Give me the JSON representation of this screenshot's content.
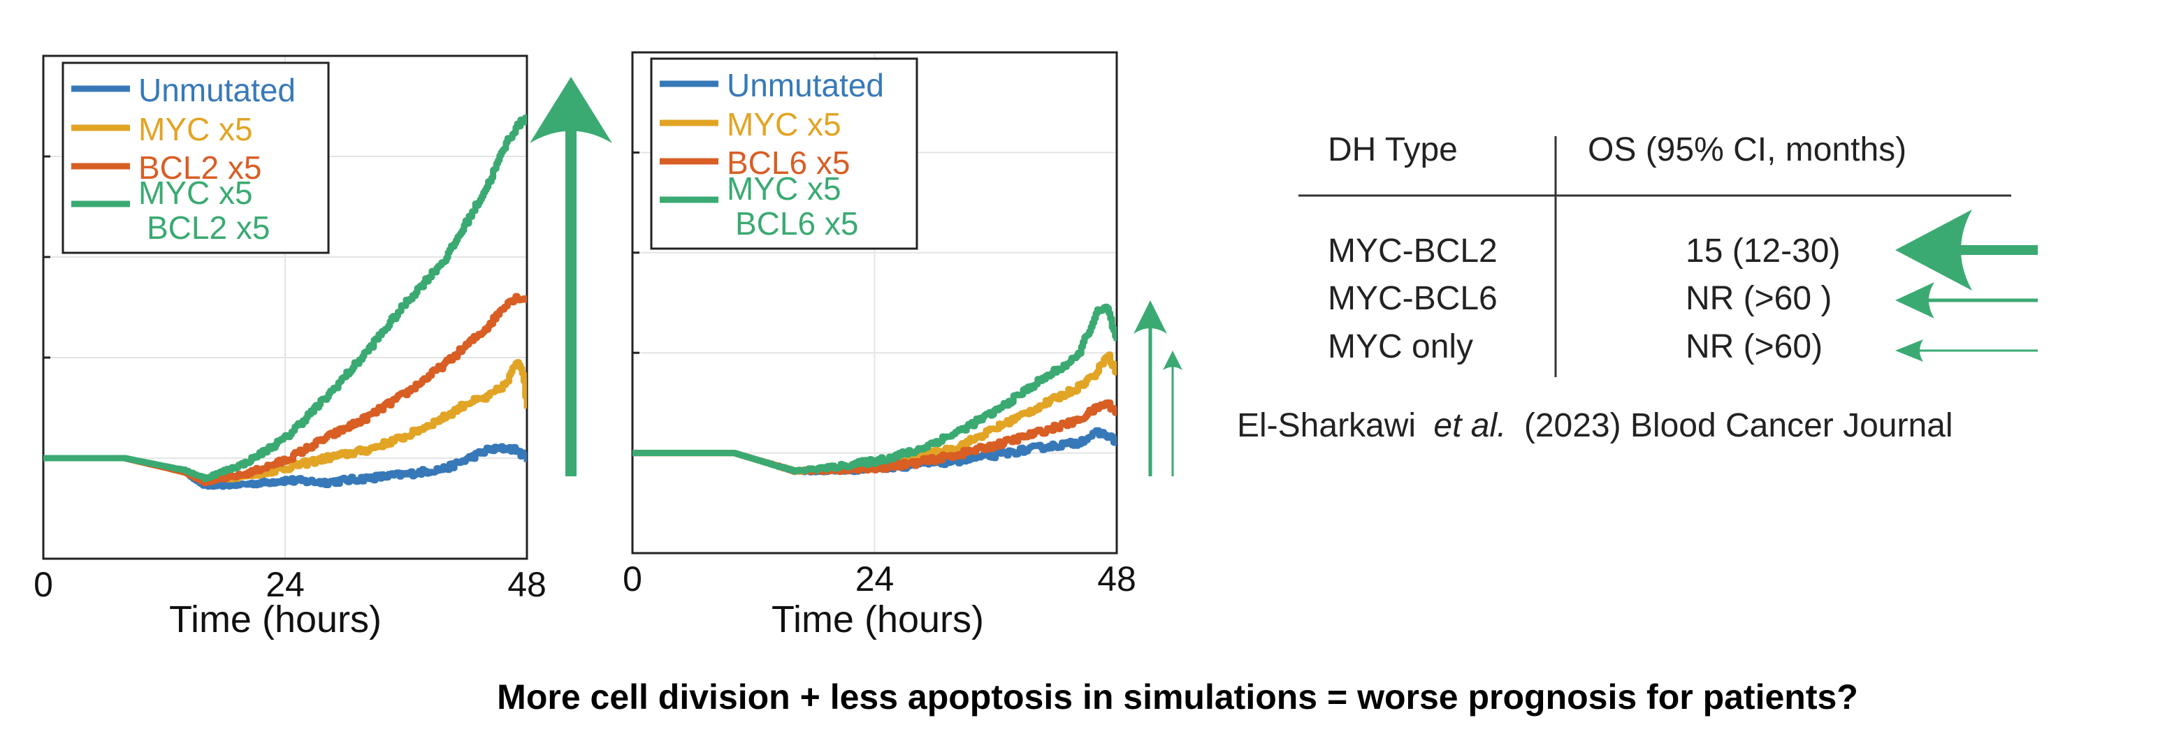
{
  "colors": {
    "unmutated": "#3779b8",
    "myc": "#e2a424",
    "bcl": "#d85e24",
    "combo": "#3aaa72",
    "arrow": "#3aaa72",
    "grid": "#e4e4e4",
    "axis": "#222222"
  },
  "chart_data": [
    {
      "type": "line",
      "xlabel": "Time (hours)",
      "ylabel": "",
      "x_ticks": [
        "0",
        "24",
        "48"
      ],
      "xlim": [
        0,
        48
      ],
      "ylim": [
        0,
        5
      ],
      "y_tick_values": [
        1,
        2,
        3,
        4,
        5
      ],
      "grid": true,
      "legend_position": "top-left",
      "series": [
        {
          "name": "Unmutated",
          "color_key": "unmutated",
          "x": [
            0,
            8,
            14,
            16,
            20,
            24,
            28,
            32,
            36,
            40,
            44,
            46,
            47,
            48
          ],
          "y": [
            1.0,
            1.0,
            0.86,
            0.72,
            0.74,
            0.78,
            0.76,
            0.8,
            0.84,
            0.9,
            1.08,
            1.1,
            1.08,
            0.98
          ]
        },
        {
          "name": "MYC x5",
          "color_key": "myc",
          "x": [
            0,
            8,
            14,
            16,
            20,
            24,
            28,
            32,
            36,
            40,
            42,
            44,
            46,
            47,
            47.6,
            48
          ],
          "y": [
            1.0,
            1.0,
            0.86,
            0.78,
            0.82,
            0.9,
            1.0,
            1.08,
            1.22,
            1.42,
            1.55,
            1.6,
            1.75,
            1.98,
            1.85,
            1.5
          ]
        },
        {
          "name": "BCL2 x5",
          "color_key": "bcl",
          "x": [
            0,
            8,
            14,
            16,
            20,
            24,
            28,
            32,
            36,
            40,
            44,
            46,
            47,
            48
          ],
          "y": [
            1.0,
            1.0,
            0.86,
            0.76,
            0.84,
            0.98,
            1.2,
            1.4,
            1.65,
            1.95,
            2.3,
            2.55,
            2.6,
            2.58
          ]
        },
        {
          "name": "MYC x5\nBCL2 x5",
          "color_key": "combo",
          "x": [
            0,
            8,
            14,
            16,
            20,
            24,
            28,
            32,
            36,
            40,
            44,
            46,
            47,
            48
          ],
          "y": [
            1.0,
            1.0,
            0.88,
            0.8,
            0.95,
            1.2,
            1.6,
            2.05,
            2.55,
            3.0,
            3.7,
            4.15,
            4.3,
            4.4
          ]
        }
      ]
    },
    {
      "type": "line",
      "xlabel": "Time (hours)",
      "ylabel": "",
      "x_ticks": [
        "0",
        "24",
        "48"
      ],
      "xlim": [
        0,
        48
      ],
      "ylim": [
        0,
        5
      ],
      "y_tick_values": [
        1,
        2,
        3,
        4,
        5
      ],
      "grid": true,
      "legend_position": "top-left",
      "series": [
        {
          "name": "Unmutated",
          "color_key": "unmutated",
          "x": [
            0,
            10,
            16,
            20,
            24,
            28,
            32,
            36,
            40,
            44,
            46,
            47,
            48
          ],
          "y": [
            1.0,
            1.0,
            0.82,
            0.82,
            0.85,
            0.88,
            0.92,
            0.98,
            1.05,
            1.1,
            1.2,
            1.18,
            1.1
          ]
        },
        {
          "name": "MYC x5",
          "color_key": "myc",
          "x": [
            0,
            10,
            16,
            20,
            24,
            28,
            32,
            36,
            40,
            44,
            46,
            47,
            48
          ],
          "y": [
            1.0,
            1.0,
            0.82,
            0.84,
            0.88,
            0.95,
            1.05,
            1.25,
            1.45,
            1.65,
            1.8,
            2.0,
            1.8
          ]
        },
        {
          "name": "BCL6 x5",
          "color_key": "bcl",
          "x": [
            0,
            10,
            16,
            20,
            24,
            28,
            32,
            36,
            40,
            44,
            46,
            47,
            48
          ],
          "y": [
            1.0,
            1.0,
            0.82,
            0.83,
            0.85,
            0.9,
            0.98,
            1.08,
            1.2,
            1.32,
            1.45,
            1.5,
            1.4
          ]
        },
        {
          "name": "MYC x5\nBCL6 x5",
          "color_key": "combo",
          "x": [
            0,
            10,
            16,
            20,
            24,
            28,
            32,
            36,
            40,
            44,
            46,
            47,
            48
          ],
          "y": [
            1.0,
            1.0,
            0.82,
            0.86,
            0.92,
            1.02,
            1.2,
            1.42,
            1.7,
            1.95,
            2.4,
            2.45,
            2.1
          ]
        }
      ]
    }
  ],
  "table": {
    "col1_header": "DH Type",
    "col2_header": "OS (95% CI, months)",
    "rows": [
      {
        "type": "MYC-BCL2",
        "os": "15 (12-30)"
      },
      {
        "type": "MYC-BCL6",
        "os": "NR (>60 )"
      },
      {
        "type": "MYC only",
        "os": "NR (>60)"
      }
    ]
  },
  "citation": {
    "authors": "El-Sharkawi",
    "etal": "et al.",
    "rest": "(2023) Blood Cancer Journal"
  },
  "caption": "More cell division + less apoptosis in simulations = worse prognosis for patients?"
}
